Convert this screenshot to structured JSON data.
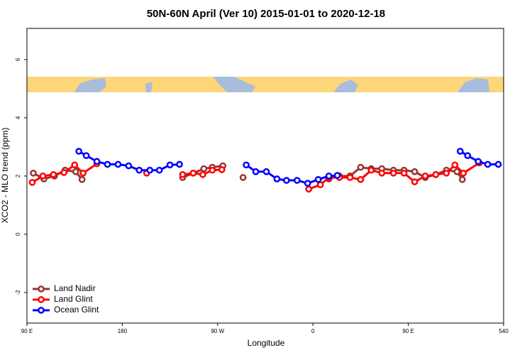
{
  "chart_data": {
    "type": "line",
    "title": "50N-60N April (Ver 10)   2015-01-01 to 2020-12-18",
    "x_label": "Longitude",
    "y_label": "XCO2 - MLO trend (ppm)",
    "xlim": [
      90,
      540
    ],
    "ylim": [
      -3.05,
      7.07
    ],
    "xticks": [
      {
        "value": 90,
        "label": "90 E"
      },
      180,
      {
        "value": 270,
        "label": "90 W"
      },
      {
        "value": 360,
        "label": "0"
      },
      {
        "value": 450,
        "label": "90 E"
      },
      540
    ],
    "yticks": [
      -2,
      0,
      2,
      4,
      6
    ],
    "legend": "bottom-left",
    "series": [
      {
        "name": "Land Nadir",
        "color": "#993333",
        "x": [
          96,
          106,
          116,
          126,
          136,
          142,
          null,
          237,
          247,
          257,
          265,
          275,
          null,
          294,
          null,
          375,
          385,
          395,
          405,
          415,
          425,
          436,
          446,
          456,
          466,
          476,
          486,
          496,
          501
        ],
        "values": [
          2.1,
          1.9,
          2.0,
          2.2,
          2.15,
          1.88,
          null,
          1.95,
          2.1,
          2.25,
          2.3,
          2.35,
          null,
          1.95,
          null,
          1.9,
          2.0,
          2.0,
          2.3,
          2.25,
          2.25,
          2.2,
          2.2,
          2.15,
          1.95,
          2.05,
          2.2,
          2.15,
          1.88
        ]
      },
      {
        "name": "Land Glint",
        "color": "#ff0000",
        "x": [
          95,
          105,
          115,
          125,
          135,
          143,
          156,
          null,
          203,
          null,
          237,
          247,
          256,
          265,
          274,
          null,
          356,
          367,
          375,
          385,
          395,
          405,
          415,
          425,
          436,
          446,
          456,
          466,
          476,
          486,
          494,
          502,
          517
        ],
        "values": [
          1.78,
          2.0,
          2.05,
          2.12,
          2.38,
          2.1,
          2.42,
          null,
          2.1,
          null,
          2.05,
          2.1,
          2.05,
          2.2,
          2.22,
          null,
          1.55,
          1.7,
          1.95,
          1.95,
          1.95,
          1.88,
          2.2,
          2.1,
          2.1,
          2.1,
          1.8,
          2.0,
          2.05,
          2.1,
          2.38,
          2.1,
          2.45
        ]
      },
      {
        "name": "Ocean Glint",
        "color": "#0000ff",
        "x": [
          139,
          146,
          156,
          166,
          176,
          186,
          196,
          206,
          215,
          225,
          234,
          null,
          297,
          306,
          316,
          326,
          335,
          345,
          355,
          365,
          375,
          383,
          null,
          499,
          506,
          516,
          525,
          535
        ],
        "values": [
          2.85,
          2.7,
          2.5,
          2.4,
          2.4,
          2.35,
          2.2,
          2.2,
          2.2,
          2.38,
          2.4,
          null,
          2.38,
          2.15,
          2.15,
          1.9,
          1.85,
          1.85,
          1.75,
          1.88,
          2.0,
          2.02,
          null,
          2.85,
          2.7,
          2.5,
          2.4,
          2.4
        ]
      }
    ]
  }
}
